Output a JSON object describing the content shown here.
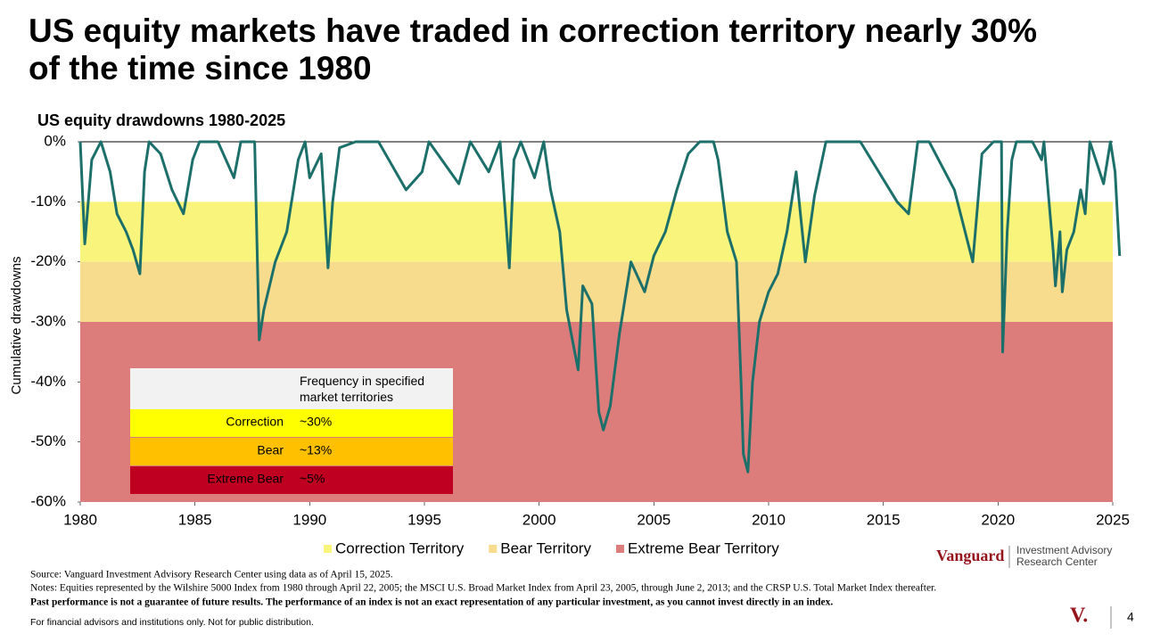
{
  "chart_data": {
    "type": "line",
    "title": "US equity markets have traded in correction territory nearly 30% of the time since 1980",
    "subtitle": "US equity drawdowns 1980-2025",
    "y_label": "Cumulative drawdowns",
    "xlim": [
      1980,
      2025
    ],
    "xticks": [
      1980,
      1985,
      1990,
      1995,
      2000,
      2005,
      2010,
      2015,
      2020,
      2025
    ],
    "ylim": [
      -60,
      0
    ],
    "yticks": [
      {
        "value": 0,
        "label": "0%"
      },
      {
        "value": -10,
        "label": "-10%"
      },
      {
        "value": -20,
        "label": "-20%"
      },
      {
        "value": -30,
        "label": "-30%"
      },
      {
        "value": -40,
        "label": "-40%"
      },
      {
        "value": -50,
        "label": "-50%"
      },
      {
        "value": -60,
        "label": "-60%"
      }
    ],
    "bands": [
      {
        "name": "Correction Territory",
        "color": "#f9f57c",
        "from": -10,
        "to": -20
      },
      {
        "name": "Bear Territory",
        "color": "#f8dc8e",
        "from": -20,
        "to": -30
      },
      {
        "name": "Extreme Bear Territory",
        "color": "#dd7d7b",
        "from": -30,
        "to": -60
      }
    ],
    "x": [
      1980.0,
      1980.2,
      1980.5,
      1980.9,
      1981.3,
      1981.6,
      1982.0,
      1982.3,
      1982.6,
      1982.8,
      1983.0,
      1983.5,
      1984.0,
      1984.5,
      1984.9,
      1985.2,
      1986.0,
      1986.7,
      1987.0,
      1987.6,
      1987.8,
      1988.0,
      1988.5,
      1989.0,
      1989.5,
      1989.8,
      1990.0,
      1990.5,
      1990.8,
      1991.0,
      1991.3,
      1992.0,
      1993.0,
      1994.2,
      1994.9,
      1995.2,
      1996.5,
      1997.0,
      1997.8,
      1998.3,
      1998.7,
      1998.9,
      1999.2,
      1999.8,
      2000.2,
      2000.5,
      2000.9,
      2001.2,
      2001.7,
      2001.9,
      2002.3,
      2002.6,
      2002.8,
      2003.1,
      2003.5,
      2004.0,
      2004.6,
      2005.0,
      2005.5,
      2006.0,
      2006.5,
      2007.0,
      2007.6,
      2007.8,
      2008.2,
      2008.6,
      2008.8,
      2008.9,
      2009.1,
      2009.3,
      2009.6,
      2010.0,
      2010.4,
      2010.8,
      2011.2,
      2011.6,
      2012.0,
      2012.5,
      2013.0,
      2014.0,
      2015.6,
      2016.1,
      2016.5,
      2017.0,
      2018.1,
      2018.9,
      2019.3,
      2019.8,
      2020.15,
      2020.2,
      2020.4,
      2020.6,
      2020.8,
      2021.5,
      2021.9,
      2022.0,
      2022.4,
      2022.5,
      2022.7,
      2022.8,
      2023.0,
      2023.3,
      2023.6,
      2023.8,
      2024.0,
      2024.6,
      2024.9,
      2025.1,
      2025.3
    ],
    "series": [
      {
        "name": "US equity drawdown",
        "color": "#1d6f6a",
        "values": [
          0,
          -17,
          -3,
          0,
          -5,
          -12,
          -15,
          -18,
          -22,
          -5,
          0,
          -2,
          -8,
          -12,
          -3,
          0,
          0,
          -6,
          0,
          0,
          -33,
          -28,
          -20,
          -15,
          -3,
          0,
          -6,
          -2,
          -21,
          -10,
          -1,
          0,
          0,
          -8,
          -5,
          0,
          -7,
          0,
          -5,
          0,
          -21,
          -3,
          0,
          -6,
          0,
          -8,
          -15,
          -28,
          -38,
          -24,
          -27,
          -45,
          -48,
          -44,
          -32,
          -20,
          -25,
          -19,
          -15,
          -8,
          -2,
          0,
          0,
          -3,
          -15,
          -20,
          -40,
          -52,
          -55,
          -40,
          -30,
          -25,
          -22,
          -15,
          -5,
          -20,
          -9,
          0,
          0,
          0,
          -10,
          -12,
          0,
          0,
          -8,
          -20,
          -2,
          0,
          0,
          -35,
          -15,
          -3,
          0,
          0,
          -3,
          0,
          -18,
          -24,
          -15,
          -25,
          -18,
          -15,
          -8,
          -12,
          0,
          -7,
          0,
          -5,
          -19
        ]
      }
    ],
    "inset": {
      "title": "Frequency in specified market territories",
      "rows": [
        {
          "label": "Correction",
          "value": "~30%",
          "color": "#ffff00"
        },
        {
          "label": "Bear",
          "value": "~13%",
          "color": "#ffc000"
        },
        {
          "label": "Extreme Bear",
          "value": "~5%",
          "color": "#c00020"
        }
      ]
    }
  },
  "footer": {
    "source": "Source: Vanguard Investment Advisory Research Center using data as of April 15, 2025.",
    "notes": "Notes: Equities represented by the Wilshire 5000 Index from 1980 through April 22, 2005; the MSCI U.S. Broad Market Index from April 23, 2005, through June 2, 2013; and the CRSP U.S. Total Market Index thereafter.",
    "disclaimer": "Past performance is not a guarantee of future results. The performance of an index is not an exact representation of any particular investment, as you cannot invest directly in an index.",
    "distribution": "For financial advisors and institutions only. Not for public distribution.",
    "brand": "Vanguard",
    "brand_sub1": "Investment Advisory",
    "brand_sub2": "Research Center",
    "logo_mark": "V.",
    "page": "4"
  }
}
